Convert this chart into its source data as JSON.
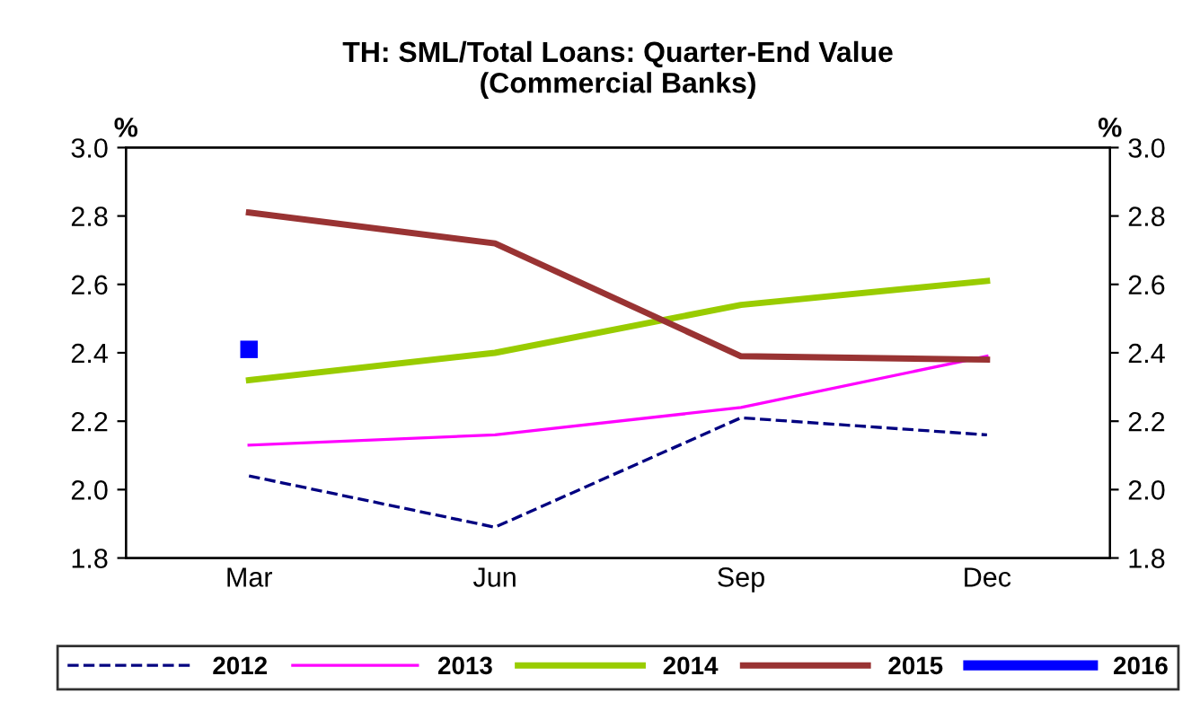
{
  "chart_data": {
    "type": "line",
    "title": "TH: SML/Total Loans: Quarter-End Value\n(Commercial Banks)",
    "ylabel": "%",
    "y2label": "%",
    "categories": [
      "Mar",
      "Jun",
      "Sep",
      "Dec"
    ],
    "series": [
      {
        "name": "2012",
        "color": "#000080",
        "line_style": "dashed",
        "values": [
          2.04,
          1.89,
          2.21,
          2.16
        ]
      },
      {
        "name": "2013",
        "color": "#ff00ff",
        "values": [
          2.13,
          2.16,
          2.24,
          2.39
        ]
      },
      {
        "name": "2014",
        "color": "#99cc00",
        "values": [
          2.32,
          2.4,
          2.54,
          2.61
        ]
      },
      {
        "name": "2015",
        "color": "#993333",
        "values": [
          2.81,
          2.72,
          2.39,
          2.38
        ]
      },
      {
        "name": "2016",
        "color": "#0000ff",
        "marker": "square",
        "values": [
          2.41,
          null,
          null,
          null
        ]
      }
    ],
    "ylim": [
      1.8,
      3.0
    ],
    "yticks": [
      1.8,
      {
        "value": 2,
        "label": "2.0"
      },
      2.2,
      2.4,
      2.6,
      2.8,
      {
        "value": 3,
        "label": "3.0"
      }
    ],
    "y2lim": [
      1.8,
      3.0
    ],
    "y2ticks": [
      1.8,
      {
        "value": 2,
        "label": "2.0"
      },
      2.2,
      2.4,
      2.6,
      2.8,
      {
        "value": 3,
        "label": "3.0"
      }
    ],
    "grid": false,
    "legend": "bottom",
    "line_style": "solid"
  }
}
